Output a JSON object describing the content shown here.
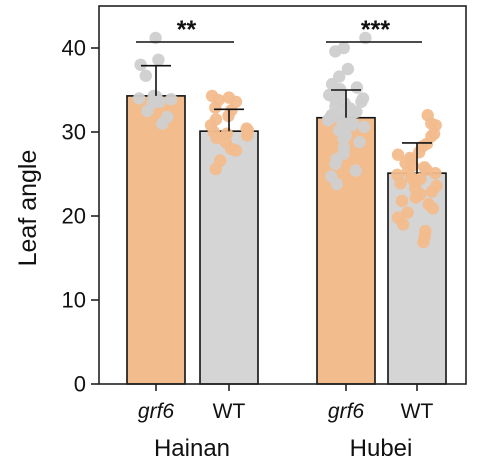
{
  "chart_data": {
    "type": "bar",
    "title": "",
    "xlabel": "",
    "ylabel": "Leaf angle",
    "ylim": [
      0,
      45
    ],
    "yticks": [
      0,
      10,
      20,
      30,
      40
    ],
    "grid": false,
    "legend": "none",
    "groups": [
      {
        "label": "Hainan",
        "significance": "**",
        "bars": [
          {
            "label": "grf6",
            "italic": true,
            "mean": 34.3,
            "error": 3.6,
            "color": "#f2bc8d",
            "dot_color": "#cfcfcf",
            "points": [
              41.2,
              38.6,
              38.0,
              36.7,
              34.3,
              34.2,
              34.0,
              33.9,
              33.6,
              33.4,
              32.5,
              31.8,
              31.0
            ]
          },
          {
            "label": "WT",
            "italic": false,
            "mean": 30.1,
            "error": 2.6,
            "color": "#d5d5d5",
            "dot_color": "#f2bc8d",
            "points": [
              34.3,
              34.1,
              33.8,
              33.6,
              32.9,
              32.6,
              31.9,
              31.5,
              30.8,
              30.4,
              30.2,
              30.0,
              29.8,
              29.6,
              29.3,
              28.8,
              28.0,
              27.8,
              26.6,
              25.6
            ]
          }
        ]
      },
      {
        "label": "Hubei",
        "significance": "***",
        "bars": [
          {
            "label": "grf6",
            "italic": true,
            "mean": 31.7,
            "error": 3.3,
            "color": "#f2bc8d",
            "dot_color": "#cfcfcf",
            "points": [
              41.2,
              40.0,
              39.6,
              37.5,
              36.6,
              35.7,
              35.3,
              35.1,
              34.6,
              34.4,
              34.0,
              33.8,
              33.6,
              33.4,
              33.0,
              32.8,
              32.6,
              32.4,
              32.2,
              32.0,
              31.9,
              31.7,
              31.6,
              31.4,
              31.2,
              31.0,
              30.8,
              30.6,
              30.2,
              29.9,
              29.6,
              29.2,
              28.8,
              28.1,
              27.4,
              26.8,
              26.2,
              25.4,
              24.7,
              23.8
            ]
          },
          {
            "label": "WT",
            "italic": false,
            "mean": 25.1,
            "error": 3.6,
            "color": "#d5d5d5",
            "dot_color": "#f2bc8d",
            "points": [
              32.0,
              31.0,
              30.8,
              29.8,
              29.5,
              28.6,
              28.3,
              27.6,
              27.3,
              26.9,
              26.6,
              26.3,
              26.0,
              25.8,
              25.5,
              25.3,
              25.1,
              24.9,
              24.6,
              24.4,
              24.1,
              23.9,
              23.6,
              23.3,
              22.9,
              22.6,
              22.2,
              21.8,
              21.4,
              20.9,
              20.4,
              19.8,
              19.0,
              18.2,
              17.6,
              16.9
            ]
          }
        ]
      }
    ]
  }
}
